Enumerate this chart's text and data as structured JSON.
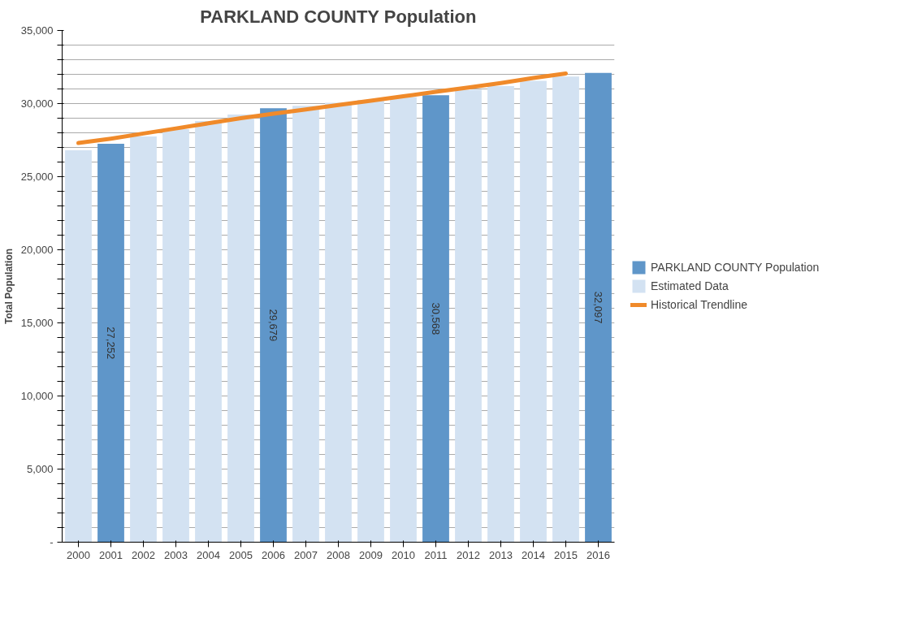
{
  "chart_data": {
    "type": "bar",
    "title": "PARKLAND COUNTY Population",
    "ylabel": "Total Population",
    "categories": [
      "2000",
      "2001",
      "2002",
      "2003",
      "2004",
      "2005",
      "2006",
      "2007",
      "2008",
      "2009",
      "2010",
      "2011",
      "2012",
      "2013",
      "2014",
      "2015",
      "2016"
    ],
    "series": [
      {
        "name": "PARKLAND COUNTY Population",
        "color": "#5f96c9",
        "values": [
          null,
          27252,
          null,
          null,
          null,
          null,
          29679,
          null,
          null,
          null,
          null,
          30568,
          null,
          null,
          null,
          null,
          32097
        ],
        "value_labels": [
          null,
          "27,252",
          null,
          null,
          null,
          null,
          "29,679",
          null,
          null,
          null,
          null,
          "30,568",
          null,
          null,
          null,
          null,
          "32,097"
        ]
      },
      {
        "name": "Estimated Data",
        "color": "#d3e2f2",
        "values": [
          26800,
          null,
          27750,
          28250,
          28800,
          29250,
          null,
          29850,
          30050,
          30250,
          30450,
          null,
          30950,
          31200,
          31550,
          31850,
          null
        ]
      },
      {
        "name": "Historical Trendline",
        "type": "line",
        "color": "#f08a2a",
        "values": [
          27300,
          27600,
          27950,
          28300,
          28650,
          29000,
          29300,
          29600,
          29900,
          30200,
          30500,
          30800,
          31100,
          31400,
          31750,
          32050,
          null
        ]
      }
    ],
    "ylim": [
      0,
      35000
    ],
    "yticks": [
      {
        "value": 0,
        "label": "-"
      },
      {
        "value": 1000,
        "label": null
      },
      {
        "value": 2000,
        "label": null
      },
      {
        "value": 3000,
        "label": null
      },
      {
        "value": 4000,
        "label": null
      },
      {
        "value": 5000,
        "label": "5,000"
      },
      {
        "value": 6000,
        "label": null
      },
      {
        "value": 7000,
        "label": null
      },
      {
        "value": 8000,
        "label": null
      },
      {
        "value": 9000,
        "label": null
      },
      {
        "value": 10000,
        "label": "10,000"
      },
      {
        "value": 11000,
        "label": null
      },
      {
        "value": 12000,
        "label": null
      },
      {
        "value": 13000,
        "label": null
      },
      {
        "value": 14000,
        "label": null
      },
      {
        "value": 15000,
        "label": "15,000"
      },
      {
        "value": 16000,
        "label": null
      },
      {
        "value": 17000,
        "label": null
      },
      {
        "value": 18000,
        "label": null
      },
      {
        "value": 19000,
        "label": null
      },
      {
        "value": 20000,
        "label": "20,000"
      },
      {
        "value": 21000,
        "label": null
      },
      {
        "value": 22000,
        "label": null
      },
      {
        "value": 23000,
        "label": null
      },
      {
        "value": 24000,
        "label": null
      },
      {
        "value": 25000,
        "label": "25,000"
      },
      {
        "value": 26000,
        "label": null
      },
      {
        "value": 27000,
        "label": null
      },
      {
        "value": 28000,
        "label": null
      },
      {
        "value": 29000,
        "label": null
      },
      {
        "value": 30000,
        "label": "30,000"
      },
      {
        "value": 31000,
        "label": null
      },
      {
        "value": 32000,
        "label": null
      },
      {
        "value": 33000,
        "label": null
      },
      {
        "value": 34000,
        "label": null
      },
      {
        "value": 35000,
        "label": "35,000"
      }
    ],
    "grid": "y",
    "legend": "right"
  }
}
